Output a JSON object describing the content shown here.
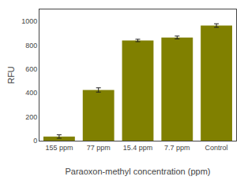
{
  "chart_data": {
    "type": "bar",
    "categories": [
      "155 ppm",
      "77 ppm",
      "15.4 ppm",
      "7.7 ppm",
      "Control"
    ],
    "values": [
      35,
      425,
      840,
      865,
      965
    ],
    "errors": [
      15,
      18,
      10,
      12,
      15
    ],
    "color": "#808000",
    "xlabel": "Paraoxon-methyl concentration (ppm)",
    "ylabel": "RFU",
    "ylim": [
      0,
      1100
    ],
    "yticks": [
      0,
      200,
      400,
      600,
      800,
      1000
    ],
    "grid": false
  }
}
